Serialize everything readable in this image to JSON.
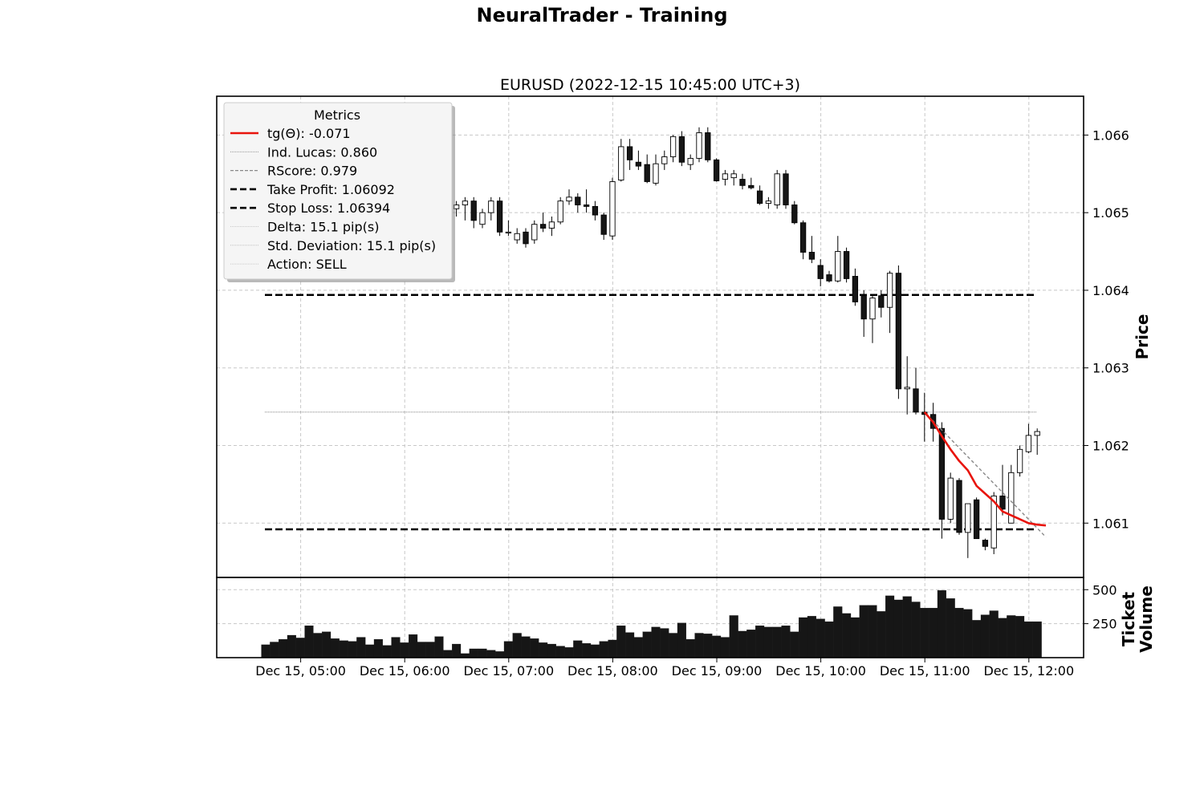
{
  "suptitle": "NeuralTrader - Training",
  "chart_data": {
    "type": "candlestick",
    "title": "EURUSD (2022-12-15 10:45:00 UTC+3)",
    "ylabel": "Price",
    "volume_ylabel": [
      "Ticket",
      "Volume"
    ],
    "ylim": [
      1.0603,
      1.0665
    ],
    "volume_ylim": [
      0,
      590
    ],
    "grid": true,
    "x_ticks": [
      "Dec 15, 05:00",
      "Dec 15, 06:00",
      "Dec 15, 07:00",
      "Dec 15, 08:00",
      "Dec 15, 09:00",
      "Dec 15, 10:00",
      "Dec 15, 11:00",
      "Dec 15, 12:00"
    ],
    "x_tick_positions": [
      4,
      16,
      28,
      40,
      52,
      64,
      76,
      88
    ],
    "y_ticks": [
      "1.061",
      "1.062",
      "1.063",
      "1.064",
      "1.065",
      "1.066"
    ],
    "y_tick_values": [
      1.061,
      1.062,
      1.063,
      1.064,
      1.065,
      1.066
    ],
    "volume_ticks": [
      "250",
      "500"
    ],
    "volume_tick_values": [
      250,
      500
    ],
    "candles": [
      {
        "o": 1.06555,
        "h": 1.06575,
        "l": 1.06535,
        "c": 1.06545,
        "v": 95
      },
      {
        "o": 1.06545,
        "h": 1.0656,
        "l": 1.0653,
        "c": 1.0655,
        "v": 115
      },
      {
        "o": 1.0655,
        "h": 1.0659,
        "l": 1.0654,
        "c": 1.0658,
        "v": 135
      },
      {
        "o": 1.0658,
        "h": 1.06605,
        "l": 1.06565,
        "c": 1.06595,
        "v": 165
      },
      {
        "o": 1.06595,
        "h": 1.0661,
        "l": 1.0657,
        "c": 1.06585,
        "v": 145
      },
      {
        "o": 1.06585,
        "h": 1.066,
        "l": 1.0656,
        "c": 1.06575,
        "v": 235
      },
      {
        "o": 1.06575,
        "h": 1.0659,
        "l": 1.0655,
        "c": 1.06565,
        "v": 180
      },
      {
        "o": 1.06565,
        "h": 1.0658,
        "l": 1.0654,
        "c": 1.06555,
        "v": 190
      },
      {
        "o": 1.06555,
        "h": 1.0657,
        "l": 1.0653,
        "c": 1.06545,
        "v": 140
      },
      {
        "o": 1.06545,
        "h": 1.0657,
        "l": 1.0653,
        "c": 1.0656,
        "v": 125
      },
      {
        "o": 1.0656,
        "h": 1.06575,
        "l": 1.06535,
        "c": 1.06545,
        "v": 120
      },
      {
        "o": 1.06545,
        "h": 1.06565,
        "l": 1.06525,
        "c": 1.0655,
        "v": 150
      },
      {
        "o": 1.0655,
        "h": 1.0657,
        "l": 1.0653,
        "c": 1.06545,
        "v": 95
      },
      {
        "o": 1.06545,
        "h": 1.0656,
        "l": 1.0653,
        "c": 1.0655,
        "v": 135
      },
      {
        "o": 1.0655,
        "h": 1.06575,
        "l": 1.06535,
        "c": 1.06565,
        "v": 90
      },
      {
        "o": 1.06565,
        "h": 1.0658,
        "l": 1.06545,
        "c": 1.0655,
        "v": 150
      },
      {
        "o": 1.0655,
        "h": 1.06575,
        "l": 1.0654,
        "c": 1.0657,
        "v": 110
      },
      {
        "o": 1.0657,
        "h": 1.0658,
        "l": 1.0654,
        "c": 1.0655,
        "v": 170
      },
      {
        "o": 1.0655,
        "h": 1.0656,
        "l": 1.06525,
        "c": 1.0653,
        "v": 115
      },
      {
        "o": 1.0653,
        "h": 1.0654,
        "l": 1.06505,
        "c": 1.06515,
        "v": 115
      },
      {
        "o": 1.06515,
        "h": 1.0652,
        "l": 1.0649,
        "c": 1.065,
        "v": 155
      },
      {
        "o": 1.065,
        "h": 1.06515,
        "l": 1.0649,
        "c": 1.06505,
        "v": 55
      },
      {
        "o": 1.06505,
        "h": 1.06515,
        "l": 1.06495,
        "c": 1.0651,
        "v": 100
      },
      {
        "o": 1.0651,
        "h": 1.0652,
        "l": 1.0649,
        "c": 1.06515,
        "v": 30
      },
      {
        "o": 1.06515,
        "h": 1.0652,
        "l": 1.0648,
        "c": 1.0649,
        "v": 65
      },
      {
        "o": 1.06485,
        "h": 1.06505,
        "l": 1.0648,
        "c": 1.065,
        "v": 65
      },
      {
        "o": 1.065,
        "h": 1.0652,
        "l": 1.0649,
        "c": 1.06515,
        "v": 55
      },
      {
        "o": 1.06515,
        "h": 1.0652,
        "l": 1.0647,
        "c": 1.06475,
        "v": 45
      },
      {
        "o": 1.06475,
        "h": 1.0649,
        "l": 1.0647,
        "c": 1.06475,
        "v": 120
      },
      {
        "o": 1.06465,
        "h": 1.0648,
        "l": 1.0646,
        "c": 1.06473,
        "v": 180
      },
      {
        "o": 1.06475,
        "h": 1.0648,
        "l": 1.06455,
        "c": 1.0646,
        "v": 155
      },
      {
        "o": 1.06465,
        "h": 1.0649,
        "l": 1.0646,
        "c": 1.06485,
        "v": 140
      },
      {
        "o": 1.06485,
        "h": 1.065,
        "l": 1.06475,
        "c": 1.0648,
        "v": 110
      },
      {
        "o": 1.0648,
        "h": 1.06495,
        "l": 1.0647,
        "c": 1.06488,
        "v": 100
      },
      {
        "o": 1.06488,
        "h": 1.0652,
        "l": 1.06485,
        "c": 1.06515,
        "v": 85
      },
      {
        "o": 1.06515,
        "h": 1.0653,
        "l": 1.0651,
        "c": 1.0652,
        "v": 75
      },
      {
        "o": 1.0652,
        "h": 1.06525,
        "l": 1.065,
        "c": 1.0651,
        "v": 125
      },
      {
        "o": 1.0651,
        "h": 1.0653,
        "l": 1.065,
        "c": 1.06508,
        "v": 105
      },
      {
        "o": 1.06508,
        "h": 1.06515,
        "l": 1.0649,
        "c": 1.06497,
        "v": 95
      },
      {
        "o": 1.06497,
        "h": 1.065,
        "l": 1.06465,
        "c": 1.06472,
        "v": 120
      },
      {
        "o": 1.0647,
        "h": 1.06545,
        "l": 1.06465,
        "c": 1.0654,
        "v": 130
      },
      {
        "o": 1.06542,
        "h": 1.06595,
        "l": 1.0654,
        "c": 1.06585,
        "v": 235
      },
      {
        "o": 1.06585,
        "h": 1.06595,
        "l": 1.06555,
        "c": 1.06568,
        "v": 185
      },
      {
        "o": 1.06565,
        "h": 1.0658,
        "l": 1.06555,
        "c": 1.0656,
        "v": 150
      },
      {
        "o": 1.06562,
        "h": 1.06575,
        "l": 1.06538,
        "c": 1.0654,
        "v": 190
      },
      {
        "o": 1.06538,
        "h": 1.06575,
        "l": 1.06535,
        "c": 1.06563,
        "v": 225
      },
      {
        "o": 1.06563,
        "h": 1.0658,
        "l": 1.06555,
        "c": 1.06572,
        "v": 215
      },
      {
        "o": 1.06572,
        "h": 1.066,
        "l": 1.06565,
        "c": 1.06598,
        "v": 180
      },
      {
        "o": 1.06598,
        "h": 1.06605,
        "l": 1.0656,
        "c": 1.06565,
        "v": 255
      },
      {
        "o": 1.06562,
        "h": 1.06575,
        "l": 1.06555,
        "c": 1.0657,
        "v": 135
      },
      {
        "o": 1.0657,
        "h": 1.0661,
        "l": 1.06565,
        "c": 1.06603,
        "v": 180
      },
      {
        "o": 1.06603,
        "h": 1.0661,
        "l": 1.06565,
        "c": 1.06568,
        "v": 175
      },
      {
        "o": 1.06568,
        "h": 1.0657,
        "l": 1.0654,
        "c": 1.06541,
        "v": 160
      },
      {
        "o": 1.06543,
        "h": 1.06555,
        "l": 1.06535,
        "c": 1.0655,
        "v": 150
      },
      {
        "o": 1.06545,
        "h": 1.06555,
        "l": 1.06535,
        "c": 1.0655,
        "v": 310
      },
      {
        "o": 1.06543,
        "h": 1.0655,
        "l": 1.0653,
        "c": 1.06535,
        "v": 195
      },
      {
        "o": 1.06535,
        "h": 1.06545,
        "l": 1.0653,
        "c": 1.06532,
        "v": 205
      },
      {
        "o": 1.06528,
        "h": 1.06535,
        "l": 1.0651,
        "c": 1.06512,
        "v": 235
      },
      {
        "o": 1.06512,
        "h": 1.0652,
        "l": 1.06505,
        "c": 1.06515,
        "v": 225
      },
      {
        "o": 1.0651,
        "h": 1.06555,
        "l": 1.06505,
        "c": 1.0655,
        "v": 225
      },
      {
        "o": 1.0655,
        "h": 1.06555,
        "l": 1.06505,
        "c": 1.0651,
        "v": 235
      },
      {
        "o": 1.0651,
        "h": 1.06515,
        "l": 1.06485,
        "c": 1.06487,
        "v": 190
      },
      {
        "o": 1.06487,
        "h": 1.0649,
        "l": 1.0644,
        "c": 1.06449,
        "v": 295
      },
      {
        "o": 1.06449,
        "h": 1.0647,
        "l": 1.06435,
        "c": 1.0644,
        "v": 305
      },
      {
        "o": 1.06432,
        "h": 1.0644,
        "l": 1.06405,
        "c": 1.06415,
        "v": 285
      },
      {
        "o": 1.0642,
        "h": 1.06425,
        "l": 1.0641,
        "c": 1.06412,
        "v": 265
      },
      {
        "o": 1.06412,
        "h": 1.0647,
        "l": 1.0641,
        "c": 1.0645,
        "v": 375
      },
      {
        "o": 1.0645,
        "h": 1.06455,
        "l": 1.0641,
        "c": 1.06415,
        "v": 325
      },
      {
        "o": 1.06418,
        "h": 1.06428,
        "l": 1.0638,
        "c": 1.06385,
        "v": 295
      },
      {
        "o": 1.06393,
        "h": 1.064,
        "l": 1.0634,
        "c": 1.06363,
        "v": 385
      },
      {
        "o": 1.06363,
        "h": 1.06395,
        "l": 1.06332,
        "c": 1.0639,
        "v": 385
      },
      {
        "o": 1.06393,
        "h": 1.064,
        "l": 1.06365,
        "c": 1.06378,
        "v": 340
      },
      {
        "o": 1.06378,
        "h": 1.06425,
        "l": 1.06345,
        "c": 1.06422,
        "v": 455
      },
      {
        "o": 1.06422,
        "h": 1.06432,
        "l": 1.0626,
        "c": 1.06273,
        "v": 425
      },
      {
        "o": 1.06273,
        "h": 1.06315,
        "l": 1.0624,
        "c": 1.06275,
        "v": 450
      },
      {
        "o": 1.06273,
        "h": 1.063,
        "l": 1.0624,
        "c": 1.06243,
        "v": 410
      },
      {
        "o": 1.06243,
        "h": 1.06268,
        "l": 1.06205,
        "c": 1.0624,
        "v": 365
      },
      {
        "o": 1.0624,
        "h": 1.06255,
        "l": 1.06205,
        "c": 1.06222,
        "v": 365
      },
      {
        "o": 1.06222,
        "h": 1.0623,
        "l": 1.0608,
        "c": 1.06105,
        "v": 495
      },
      {
        "o": 1.06105,
        "h": 1.06165,
        "l": 1.061,
        "c": 1.06158,
        "v": 435
      },
      {
        "o": 1.06155,
        "h": 1.06158,
        "l": 1.06085,
        "c": 1.06088,
        "v": 365
      },
      {
        "o": 1.06088,
        "h": 1.06125,
        "l": 1.06055,
        "c": 1.06125,
        "v": 355
      },
      {
        "o": 1.0613,
        "h": 1.06133,
        "l": 1.0608,
        "c": 1.0608,
        "v": 275
      },
      {
        "o": 1.06078,
        "h": 1.0608,
        "l": 1.06065,
        "c": 1.0607,
        "v": 315
      },
      {
        "o": 1.06068,
        "h": 1.0614,
        "l": 1.0606,
        "c": 1.06135,
        "v": 345
      },
      {
        "o": 1.06135,
        "h": 1.06175,
        "l": 1.0611,
        "c": 1.06118,
        "v": 290
      },
      {
        "o": 1.061,
        "h": 1.06175,
        "l": 1.061,
        "c": 1.06165,
        "v": 310
      },
      {
        "o": 1.06165,
        "h": 1.062,
        "l": 1.0616,
        "c": 1.06195,
        "v": 305
      },
      {
        "o": 1.06192,
        "h": 1.06228,
        "l": 1.0619,
        "c": 1.06213,
        "v": 265
      },
      {
        "o": 1.06213,
        "h": 1.06222,
        "l": 1.06188,
        "c": 1.06218,
        "v": 265
      }
    ],
    "take_profit": 1.06092,
    "stop_loss": 1.06394,
    "reference_level": 1.06243,
    "regression_start": 76,
    "regression_end": 90,
    "regression_line": [
      1.06243,
      1.06082
    ],
    "trend_curve_x": [
      76,
      77,
      78,
      79,
      80,
      81,
      82,
      83,
      84,
      85,
      86,
      87,
      88,
      89,
      90
    ],
    "trend_curve_y": [
      1.06243,
      1.0623,
      1.06212,
      1.06195,
      1.0618,
      1.06168,
      1.06148,
      1.06138,
      1.06128,
      1.06115,
      1.0611,
      1.06105,
      1.061,
      1.06098,
      1.06097
    ],
    "legend": {
      "title": "Metrics",
      "placement": "upper-left",
      "entries": [
        {
          "label": "tg(Θ): -0.071",
          "style": "solid",
          "color": "#e8140c"
        },
        {
          "label": "Ind. Lucas: 0.860",
          "style": "dotted",
          "color": "#888888"
        },
        {
          "label": "RScore: 0.979",
          "style": "dashed",
          "color": "#888888"
        },
        {
          "label": "Take Profit: 1.06092",
          "style": "bold-dashed",
          "color": "#000000"
        },
        {
          "label": "Stop Loss: 1.06394",
          "style": "bold-dashed",
          "color": "#000000"
        },
        {
          "label": "Delta: 15.1 pip(s)",
          "style": "dotted",
          "color": "#bbbbbb"
        },
        {
          "label": "Std. Deviation: 15.1 pip(s)",
          "style": "dotted",
          "color": "#bbbbbb"
        },
        {
          "label": "Action: SELL",
          "style": "dotted",
          "color": "#bbbbbb"
        }
      ]
    },
    "colors": {
      "up_fill": "#ffffff",
      "down_fill": "#161616",
      "edge": "#000000",
      "volume": "#161616",
      "trend": "#e8140c",
      "regression": "#888888",
      "grid": "#c8c8c8"
    }
  }
}
